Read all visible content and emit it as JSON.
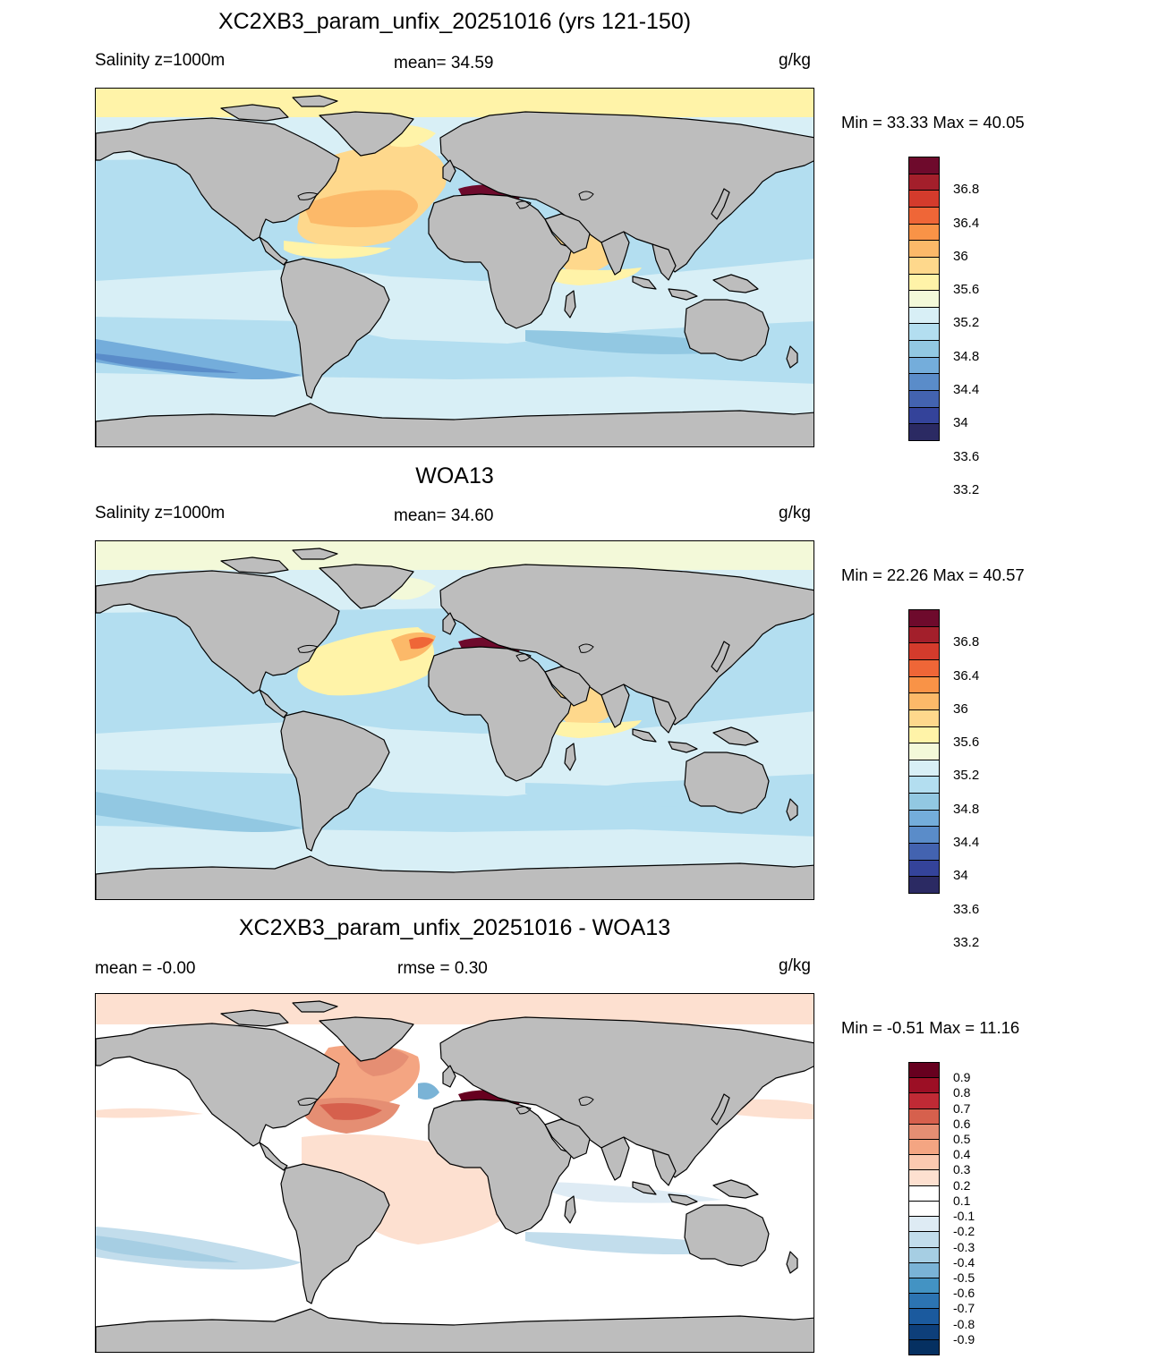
{
  "panels": [
    {
      "title": "XC2XB3_param_unfix_20251016 (yrs 121-150)",
      "left_label": "Salinity z=1000m",
      "center_label": "mean=  34.59",
      "units": "g/kg",
      "minmax": "Min =  33.33 Max =  40.05",
      "colorbar": {
        "colors": [
          "#6e0a2c",
          "#a31f2b",
          "#d43b2c",
          "#ef6637",
          "#f99347",
          "#fcb969",
          "#fed88c",
          "#fff3a8",
          "#f3f9d9",
          "#d8eff6",
          "#b3def0",
          "#92c8e2",
          "#74addb",
          "#5a8cc9",
          "#4363b0",
          "#34439a",
          "#2b2a63"
        ],
        "labels": [
          "36.8",
          "36.4",
          "36",
          "35.6",
          "35.2",
          "34.8",
          "34.4",
          "34",
          "33.6",
          "33.2"
        ]
      }
    },
    {
      "title": "WOA13",
      "left_label": "Salinity z=1000m",
      "center_label": "mean=  34.60",
      "units": "g/kg",
      "minmax": "Min =  22.26 Max =  40.57",
      "colorbar": {
        "colors": [
          "#6e0a2c",
          "#a31f2b",
          "#d43b2c",
          "#ef6637",
          "#f99347",
          "#fcb969",
          "#fed88c",
          "#fff3a8",
          "#f3f9d9",
          "#d8eff6",
          "#b3def0",
          "#92c8e2",
          "#74addb",
          "#5a8cc9",
          "#4363b0",
          "#34439a",
          "#2b2a63"
        ],
        "labels": [
          "36.8",
          "36.4",
          "36",
          "35.6",
          "35.2",
          "34.8",
          "34.4",
          "34",
          "33.6",
          "33.2"
        ]
      }
    },
    {
      "title": "XC2XB3_param_unfix_20251016 - WOA13",
      "left_label": "mean =  -0.00",
      "center_label": "rmse =   0.30",
      "units": "g/kg",
      "minmax": "Min =  -0.51 Max =  11.16",
      "colorbar": {
        "colors": [
          "#67001f",
          "#9c0f25",
          "#c02a35",
          "#d6604d",
          "#e58e73",
          "#f4a582",
          "#fbc9b0",
          "#fde0d0",
          "#ffffff",
          "#ffffff",
          "#deebf4",
          "#c2ddec",
          "#a6cee3",
          "#7ab3d6",
          "#4393c3",
          "#2c74b2",
          "#1b5a9e",
          "#0e3f7a",
          "#053061"
        ],
        "labels": [
          "0.9",
          "0.8",
          "0.7",
          "0.6",
          "0.5",
          "0.4",
          "0.3",
          "0.2",
          "0.1",
          "-0.1",
          "-0.2",
          "-0.3",
          "-0.4",
          "-0.5",
          "-0.6",
          "-0.7",
          "-0.8",
          "-0.9"
        ]
      }
    }
  ],
  "land_color": "#bdbdbd"
}
